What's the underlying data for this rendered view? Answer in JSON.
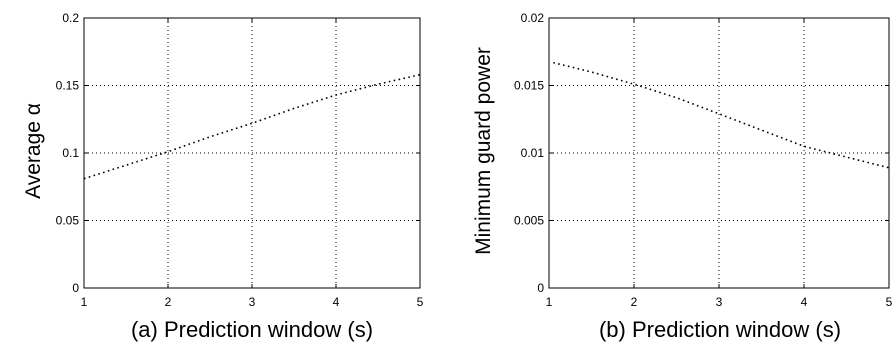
{
  "chart_data": [
    {
      "type": "line",
      "xlabel": "(a) Prediction window (s)",
      "ylabel": "Average α",
      "xlim": [
        1,
        5
      ],
      "ylim": [
        0,
        0.2
      ],
      "x_ticks": [
        1,
        2,
        3,
        4,
        5
      ],
      "x_tick_labels": [
        "1",
        "2",
        "3",
        "4",
        "5"
      ],
      "y_ticks": [
        0,
        0.05,
        0.1,
        0.15,
        0.2
      ],
      "y_tick_labels": [
        "0",
        "0.05",
        "0.1",
        "0.15",
        "0.2"
      ],
      "grid": true,
      "line_style": "dotted",
      "series": [
        {
          "x": [
            1,
            1.5,
            2,
            2.5,
            3,
            3.5,
            4,
            4.5,
            5
          ],
          "y": [
            0.081,
            0.091,
            0.101,
            0.112,
            0.122,
            0.133,
            0.143,
            0.151,
            0.158
          ]
        }
      ]
    },
    {
      "type": "line",
      "xlabel": "(b) Prediction window (s)",
      "ylabel": "Minimum guard power",
      "xlim": [
        1,
        5
      ],
      "ylim": [
        0,
        0.02
      ],
      "x_ticks": [
        1,
        2,
        3,
        4,
        5
      ],
      "x_tick_labels": [
        "1",
        "2",
        "3",
        "4",
        "5"
      ],
      "y_ticks": [
        0,
        0.005,
        0.01,
        0.015,
        0.02
      ],
      "y_tick_labels": [
        "0",
        "0.005",
        "0.01",
        "0.015",
        "0.02"
      ],
      "grid": true,
      "line_style": "dotted",
      "series": [
        {
          "x": [
            1.05,
            1.5,
            2,
            2.5,
            3,
            3.5,
            4,
            4.5,
            5
          ],
          "y": [
            0.0167,
            0.016,
            0.0151,
            0.0141,
            0.0129,
            0.0117,
            0.0105,
            0.0097,
            0.0089
          ]
        }
      ]
    }
  ]
}
